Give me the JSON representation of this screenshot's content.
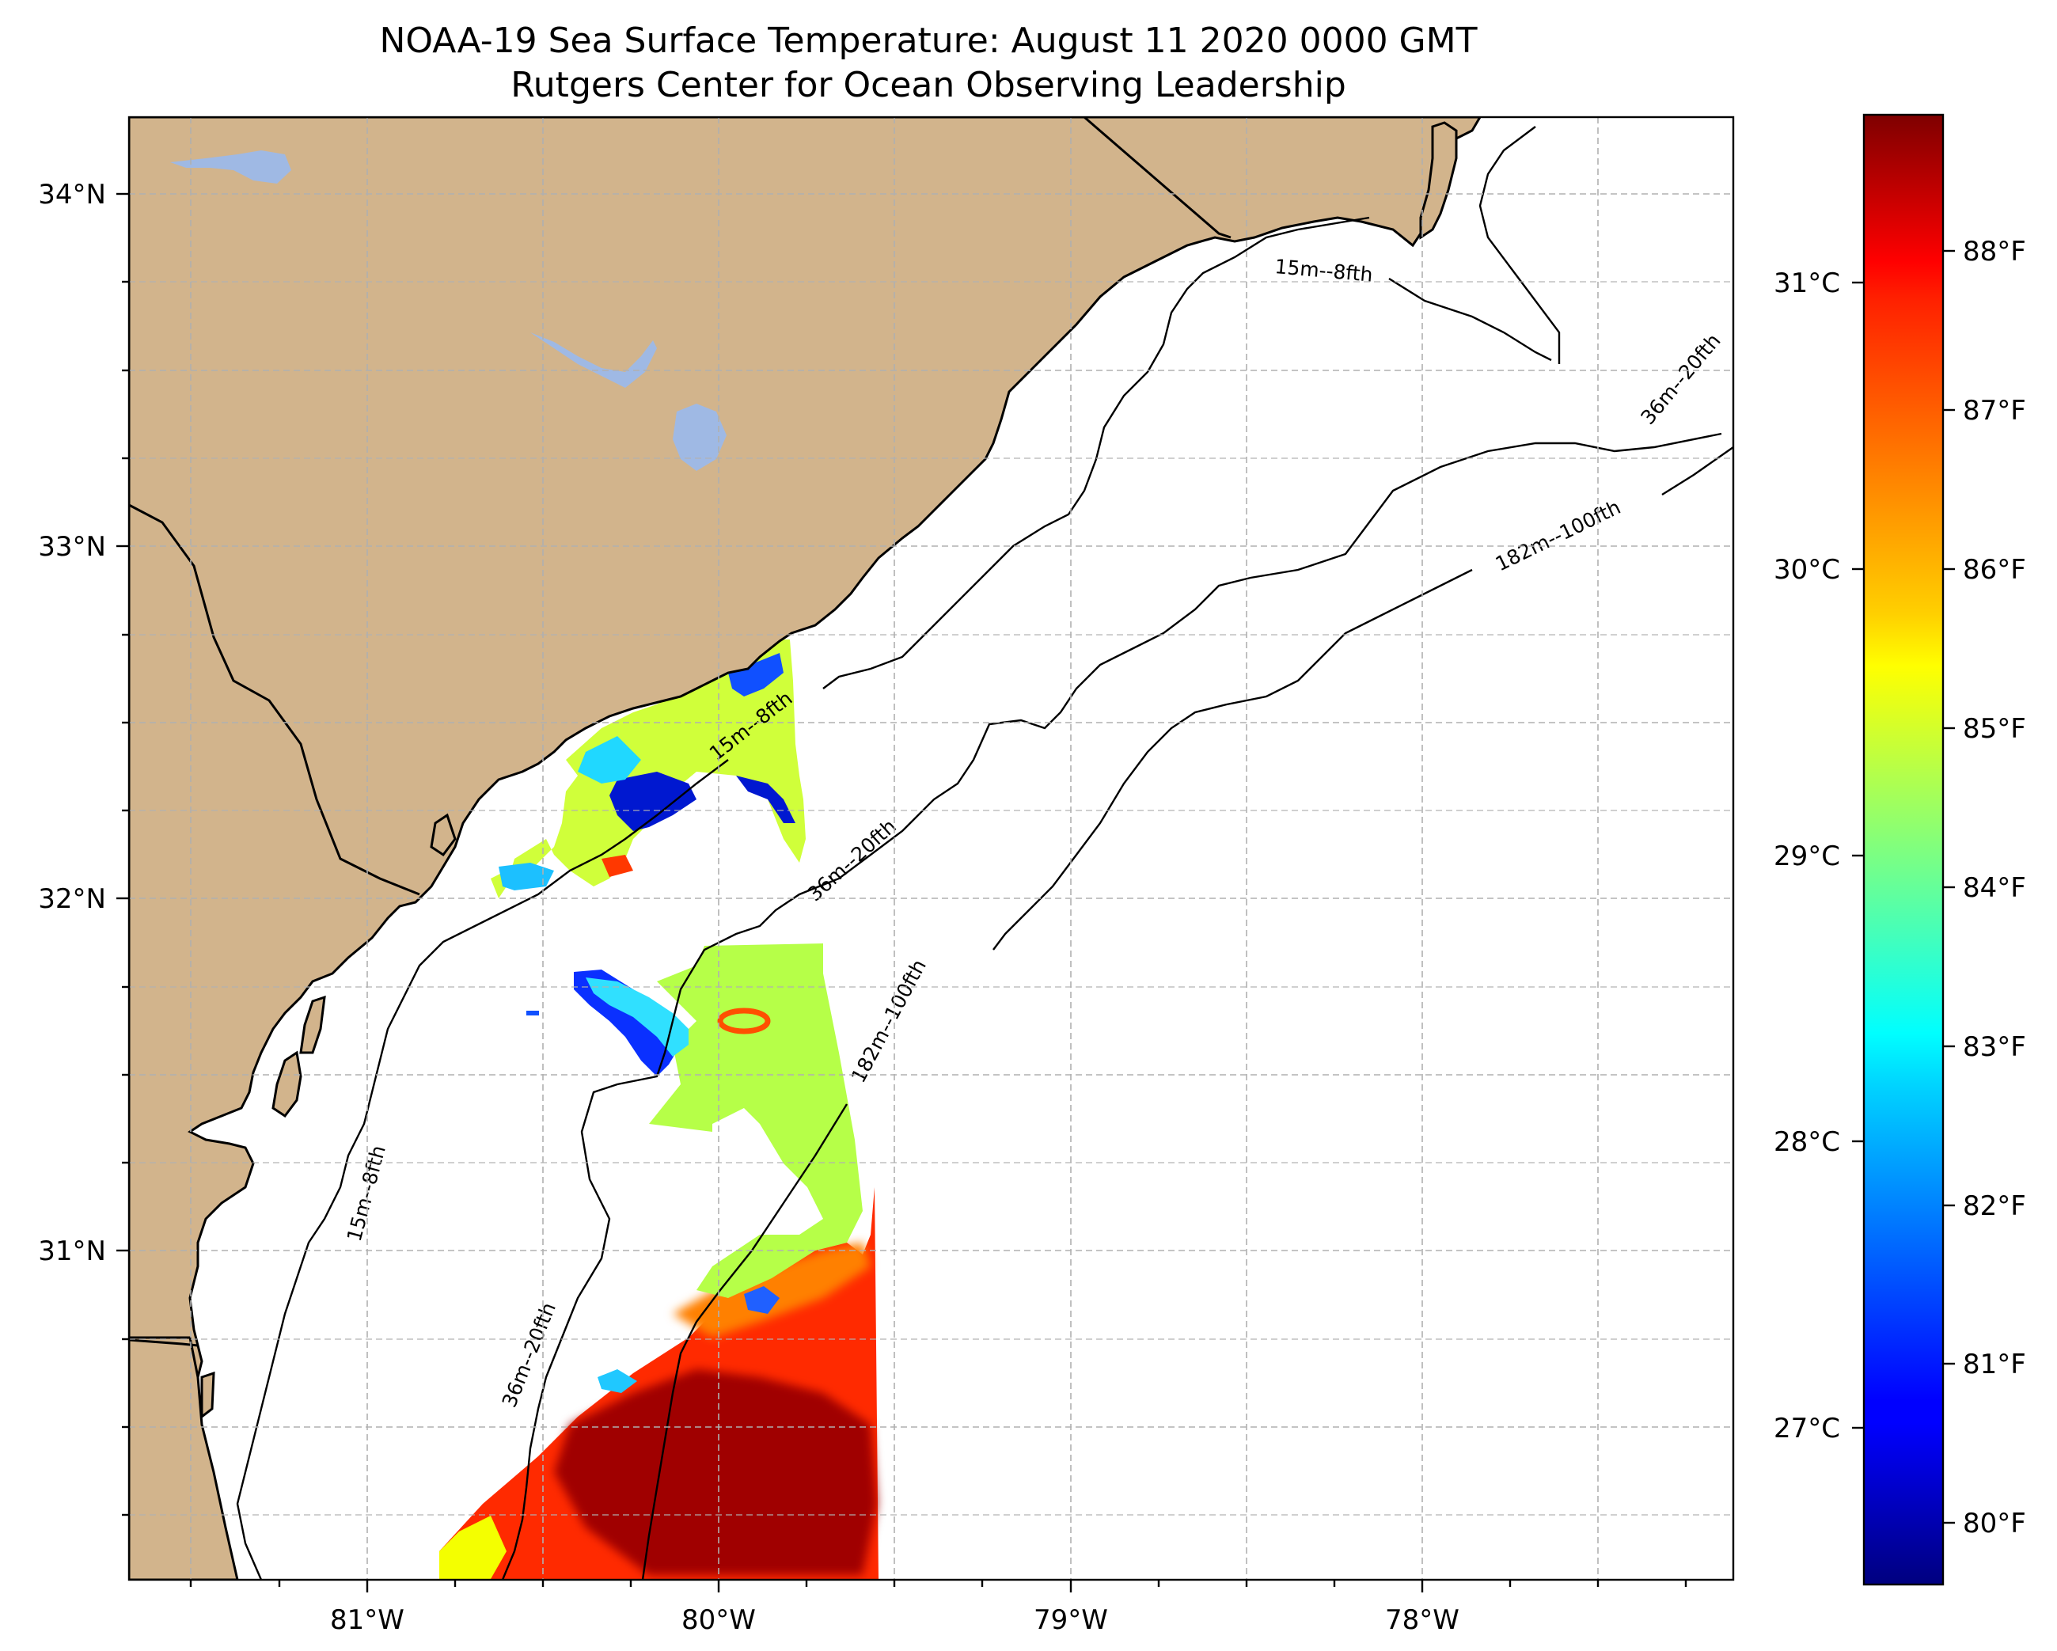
{
  "title": {
    "line1": "NOAA-19 Sea Surface Temperature: August 11 2020 0000 GMT",
    "line2": "Rutgers Center for Ocean Observing Leadership"
  },
  "axes": {
    "lon_ticks": [
      "81°W",
      "80°W",
      "79°W",
      "78°W"
    ],
    "lat_ticks": [
      "34°N",
      "33°N",
      "32°N",
      "31°N"
    ],
    "lon_range": [
      -81.68,
      -77.1
    ],
    "lat_range": [
      30.18,
      34.2
    ]
  },
  "contours": {
    "isobath_15m": "15m--8fth",
    "isobath_36m": "36m--20fth",
    "isobath_182m": "182m--100fth"
  },
  "colorbar": {
    "celsius": [
      "31°C",
      "30°C",
      "29°C",
      "28°C",
      "27°C"
    ],
    "fahrenheit": [
      "88°F",
      "87°F",
      "86°F",
      "85°F",
      "84°F",
      "83°F",
      "82°F",
      "81°F",
      "80°F"
    ],
    "range_f": [
      79.5,
      88.7
    ],
    "colormap": "jet"
  },
  "colors": {
    "land": "#d2b48c",
    "lakes": "#9fb9e4",
    "ocean": "#ffffff",
    "grid": "#b0b0b0"
  },
  "chart_data": {
    "type": "heatmap",
    "title": "NOAA-19 Sea Surface Temperature: August 11 2020 0000 GMT",
    "subtitle": "Rutgers Center for Ocean Observing Leadership",
    "xlabel": "",
    "ylabel": "",
    "x_ticks": [
      "81°W",
      "80°W",
      "79°W",
      "78°W"
    ],
    "y_ticks": [
      "34°N",
      "33°N",
      "32°N",
      "31°N"
    ],
    "xlim": [
      -81.68,
      -77.1
    ],
    "ylim": [
      30.18,
      34.2
    ],
    "grid": true,
    "colorbar_range_f": [
      79.5,
      88.7
    ],
    "colorbar_ticks_f": [
      80,
      81,
      82,
      83,
      84,
      85,
      86,
      87,
      88
    ],
    "colorbar_ticks_c": [
      27,
      28,
      29,
      30,
      31
    ]
  }
}
